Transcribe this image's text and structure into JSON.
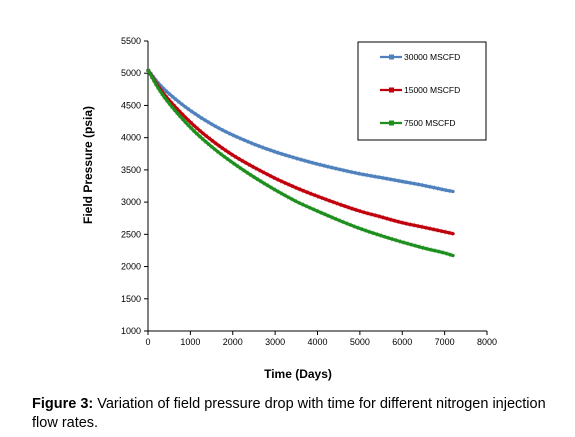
{
  "chart_data": {
    "type": "line",
    "xlabel": "Time (Days)",
    "ylabel": "Field Pressure (psia)",
    "xlim": [
      0,
      8000
    ],
    "ylim": [
      1000,
      5500
    ],
    "xticks": [
      "0",
      "1000",
      "2000",
      "3000",
      "4000",
      "5000",
      "6000",
      "7000",
      "8000"
    ],
    "yticks": [
      "1000",
      "1500",
      "2000",
      "2500",
      "3000",
      "3500",
      "4000",
      "4500",
      "5000",
      "5500"
    ],
    "x": [
      0,
      250,
      500,
      1000,
      1500,
      2000,
      2500,
      3000,
      3500,
      4000,
      4500,
      5000,
      5500,
      6000,
      6500,
      7000,
      7200
    ],
    "legend_position": "top-right",
    "grid": false,
    "series": [
      {
        "name": "30000 MSCFD",
        "color": "#4F81BD",
        "values": [
          5050,
          4840,
          4680,
          4420,
          4210,
          4040,
          3900,
          3780,
          3680,
          3590,
          3510,
          3440,
          3380,
          3320,
          3260,
          3190,
          3165
        ]
      },
      {
        "name": "15000 MSCFD",
        "color": "#C0000D",
        "values": [
          5050,
          4790,
          4580,
          4240,
          3960,
          3730,
          3540,
          3370,
          3220,
          3090,
          2970,
          2860,
          2770,
          2680,
          2610,
          2540,
          2510
        ]
      },
      {
        "name": "7500 MSCFD",
        "color": "#1E8F1E",
        "values": [
          5050,
          4760,
          4530,
          4160,
          3860,
          3610,
          3390,
          3190,
          3010,
          2860,
          2720,
          2590,
          2480,
          2380,
          2290,
          2210,
          2170
        ]
      }
    ]
  },
  "caption": {
    "label": "Figure 3:",
    "text": " Variation of field pressure drop with time for different nitrogen injection flow rates."
  }
}
